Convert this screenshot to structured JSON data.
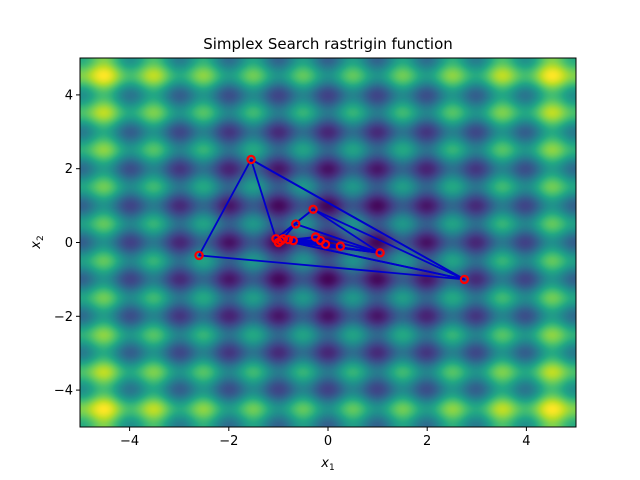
{
  "chart_data": {
    "type": "heatmap",
    "title": "Simplex Search rastrigin function",
    "xlabel": {
      "base": "x",
      "sub": "1"
    },
    "ylabel": {
      "base": "x",
      "sub": "2"
    },
    "xlim": [
      -5,
      5
    ],
    "ylim": [
      -5,
      5
    ],
    "xticks": [
      -4,
      -2,
      0,
      2,
      4
    ],
    "yticks": [
      -4,
      -2,
      0,
      2,
      4
    ],
    "xtick_labels": [
      "−4",
      "−2",
      "0",
      "2",
      "4"
    ],
    "ytick_labels": [
      "−4",
      "−2",
      "0",
      "2",
      "4"
    ],
    "colormap": "viridis",
    "background_function": "rastrigin",
    "grid": false,
    "simplex_points": [
      [
        -2.6,
        -0.35
      ],
      [
        -1.55,
        2.25
      ],
      [
        2.75,
        -1.0
      ],
      [
        -1.05,
        0.1
      ],
      [
        -0.3,
        0.9
      ],
      [
        1.05,
        -0.28
      ],
      [
        -0.65,
        0.5
      ],
      [
        -0.95,
        0.05
      ],
      [
        -0.7,
        0.05
      ],
      [
        -0.25,
        0.15
      ],
      [
        -0.05,
        -0.05
      ],
      [
        0.25,
        -0.1
      ],
      [
        -0.9,
        0.1
      ],
      [
        -1.0,
        0.0
      ],
      [
        -0.8,
        0.08
      ],
      [
        -0.15,
        0.05
      ]
    ],
    "simplex_triangles": [
      [
        0,
        1,
        2
      ],
      [
        1,
        3,
        2
      ],
      [
        3,
        4,
        2
      ],
      [
        3,
        4,
        5
      ],
      [
        3,
        6,
        5
      ],
      [
        7,
        6,
        5
      ],
      [
        7,
        8,
        5
      ],
      [
        8,
        9,
        5
      ],
      [
        7,
        9,
        10
      ],
      [
        7,
        10,
        11
      ],
      [
        12,
        10,
        11
      ],
      [
        13,
        14,
        15
      ]
    ],
    "line_color": "#0000cc",
    "marker_color": "#ff0000"
  }
}
